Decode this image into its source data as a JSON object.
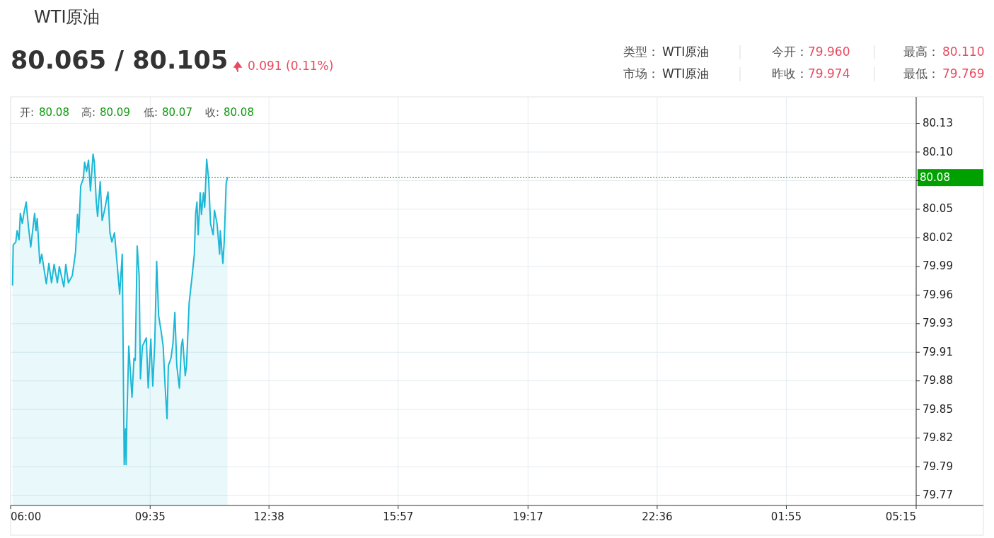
{
  "chart_data": {
    "type": "area",
    "title": "WTI原油",
    "subtitle": "80.065 / 80.105",
    "annotations": [
      "0.091 (0.11%)",
      "类型：",
      "WTI原油",
      "今开：",
      "79.960",
      "最高：",
      "80.110",
      "市场：",
      "WTI原油",
      "昨收：",
      "79.974",
      "最低：",
      "79.769",
      "开:",
      "80.08",
      "高:",
      "80.09",
      "低:",
      "80.07",
      "收:",
      "80.08"
    ],
    "x": [
      "--01-01T06:03",
      "--01-01T06:04",
      "--01-01T06:08",
      "--01-01T06:10",
      "--01-01T06:13",
      "--01-01T06:15",
      "--01-01T06:18",
      "--01-01T06:21",
      "--01-01T06:24",
      "--01-01T06:27",
      "--01-01T06:31",
      "--01-01T06:37",
      "--01-01T06:39",
      "--01-01T06:41",
      "--01-01T06:45",
      "--01-01T06:48",
      "--01-01T06:55",
      "--01-01T06:59",
      "--01-01T07:03",
      "--01-01T07:07",
      "--01-01T07:12",
      "--01-01T07:15",
      "--01-01T07:22",
      "--01-01T07:25",
      "--01-01T07:29",
      "--01-01T07:35",
      "--01-01T07:40",
      "--01-01T07:43",
      "--01-01T07:45",
      "--01-01T07:48",
      "--01-01T07:52",
      "--01-01T07:54",
      "--01-01T07:57",
      "--01-01T08:00",
      "--01-01T08:03",
      "--01-01T08:07",
      "--01-01T08:09",
      "--01-01T08:12",
      "--01-01T08:14",
      "--01-01T08:18",
      "--01-01T08:21",
      "--01-01T08:25",
      "--01-01T08:30",
      "--01-01T08:33",
      "--01-01T08:36",
      "--01-01T08:40",
      "--01-01T08:44",
      "--01-01T08:48",
      "--01-01T08:52",
      "--01-01T08:55",
      "--01-01T08:57",
      "--01-01T08:58",
      "--01-01T08:59",
      "--01-01T09:02",
      "--01-01T09:07",
      "--01-01T09:10",
      "--01-01T09:12",
      "--01-01T09:15",
      "--01-01T09:18",
      "--01-01T09:20",
      "--01-01T09:23",
      "--01-01T09:29",
      "--01-01T09:32",
      "--01-01T09:36",
      "--01-01T09:39",
      "--01-01T09:42",
      "--01-01T09:45",
      "--01-01T09:48",
      "--01-01T09:52",
      "--01-01T09:55",
      "--01-01T09:58",
      "--01-01T10:01",
      "--01-01T10:03",
      "--01-01T10:07",
      "--01-01T10:10",
      "--01-01T10:13",
      "--01-01T10:16",
      "--01-01T10:20",
      "--01-01T10:23",
      "--01-01T10:25",
      "--01-01T10:29",
      "--01-01T10:31",
      "--01-01T10:35",
      "--01-01T10:40",
      "--01-01T10:43",
      "--01-01T10:45",
      "--01-01T10:47",
      "--01-01T10:49",
      "--01-01T10:52",
      "--01-01T10:54",
      "--01-01T10:57",
      "--01-01T10:59",
      "--01-01T11:02",
      "--01-01T11:05",
      "--01-01T11:08",
      "--01-01T11:12",
      "--01-01T11:14",
      "--01-01T11:18",
      "--01-01T11:22",
      "--01-01T11:23",
      "--01-01T11:27",
      "--01-01T11:29",
      "--01-01T11:32",
      "--01-01T11:34"
    ],
    "series": [
      {
        "color": "#1cb8d6",
        "values": [
          79.972,
          80.011,
          80.014,
          80.025,
          80.016,
          80.042,
          80.032,
          80.044,
          80.053,
          80.032,
          80.009,
          80.042,
          80.025,
          80.037,
          79.993,
          80.002,
          79.973,
          79.993,
          79.974,
          79.992,
          79.974,
          79.99,
          79.97,
          79.992,
          79.974,
          79.981,
          80.004,
          80.041,
          80.023,
          80.069,
          80.076,
          80.092,
          80.083,
          80.094,
          80.064,
          80.1,
          80.092,
          80.053,
          80.039,
          80.073,
          80.035,
          80.046,
          80.063,
          80.023,
          80.014,
          80.023,
          79.993,
          79.963,
          80.002,
          79.796,
          79.831,
          79.796,
          79.838,
          79.912,
          79.862,
          79.9,
          79.898,
          80.01,
          79.981,
          79.88,
          79.912,
          79.92,
          79.871,
          79.919,
          79.873,
          79.914,
          79.995,
          79.942,
          79.926,
          79.912,
          79.873,
          79.841,
          79.893,
          79.9,
          79.914,
          79.945,
          79.893,
          79.871,
          79.912,
          79.919,
          79.883,
          79.893,
          79.954,
          79.983,
          80.002,
          80.041,
          80.053,
          80.021,
          80.062,
          80.041,
          80.062,
          80.048,
          80.095,
          80.076,
          80.032,
          80.021,
          80.045,
          80.032,
          80.002,
          80.025,
          79.993,
          80.014,
          80.071,
          80.077
        ]
      }
    ],
    "xlim": [
      "--01-01T06:00",
      "--01-02T05:15"
    ],
    "xticks": [
      {
        "value": "--01-01T06:00",
        "label": "06:00"
      },
      {
        "value": "--01-01T09:35",
        "label": "09:35"
      },
      {
        "value": "--01-01T12:38",
        "label": "12:38"
      },
      {
        "value": "--01-01T15:57",
        "label": "15:57"
      },
      {
        "value": "--01-01T19:17",
        "label": "19:17"
      },
      {
        "value": "--01-01T22:36",
        "label": "22:36"
      },
      {
        "value": "--01-02T01:55",
        "label": "01:55"
      },
      {
        "value": "--01-02T05:15",
        "label": "05:15"
      }
    ],
    "ylim": [
      79.756,
      80.156
    ],
    "yticks": [
      {
        "value": 79.766,
        "label": "79.77"
      },
      {
        "value": 79.794,
        "label": "79.79"
      },
      {
        "value": 79.822,
        "label": "79.82"
      },
      {
        "value": 79.85,
        "label": "79.85"
      },
      {
        "value": 79.878,
        "label": "79.88"
      },
      {
        "value": 79.906,
        "label": "79.91"
      },
      {
        "value": 79.934,
        "label": "79.93"
      },
      {
        "value": 79.962,
        "label": "79.96"
      },
      {
        "value": 79.99,
        "label": "79.99"
      },
      {
        "value": 80.018,
        "label": "80.02"
      },
      {
        "value": 80.046,
        "label": "80.05"
      },
      {
        "value": 80.074,
        "label": null
      },
      {
        "value": 80.102,
        "label": "80.10"
      },
      {
        "value": 80.13,
        "label": "80.13"
      }
    ],
    "grid": true,
    "ref_lines": [
      {
        "axis": "y",
        "value": 80.077,
        "label": "80.08",
        "color": "#00a000",
        "line_style": "dotted"
      }
    ]
  }
}
